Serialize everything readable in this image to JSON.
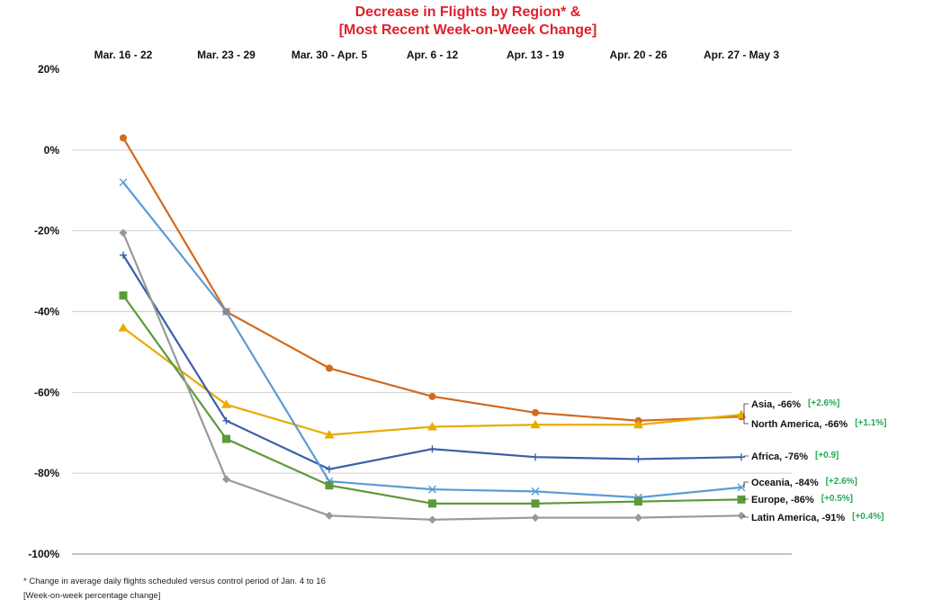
{
  "chart_data": {
    "type": "line",
    "title_line1": "Decrease in Flights by Region* &",
    "title_line2": "[Most Recent Week-on-Week Change]",
    "categories": [
      "Mar. 16 - 22",
      "Mar. 23 - 29",
      "Mar. 30 - Apr. 5",
      "Apr. 6 - 12",
      "Apr. 13 - 19",
      "Apr. 20 - 26",
      "Apr. 27 - May 3"
    ],
    "y_ticks": [
      20,
      0,
      -20,
      -40,
      -60,
      -80,
      -100
    ],
    "y_tick_labels": [
      "20%",
      "0%",
      "-20%",
      "-40%",
      "-60%",
      "-80%",
      "-100%"
    ],
    "ylim": [
      -100,
      20
    ],
    "x_axis_position": "top",
    "grid": true,
    "legend": "inline labels at right end of each line",
    "series": [
      {
        "name": "Asia",
        "end_label": "Asia, -66%",
        "change": "[+2.6%]",
        "color": "#d2691e",
        "marker": "circle",
        "values": [
          3,
          -40,
          -54,
          -61,
          -65,
          -67,
          -66
        ]
      },
      {
        "name": "North America",
        "end_label": "North America, -66%",
        "change": "[+1.1%]",
        "color": "#e6ac00",
        "marker": "triangle",
        "values": [
          -44,
          -63,
          -70.5,
          -68.5,
          -68,
          -68,
          -65.5
        ]
      },
      {
        "name": "Africa",
        "end_label": "Africa, -76%",
        "change": "[+0.9]",
        "color": "#3a5fa8",
        "marker": "plus",
        "values": [
          -26,
          -67,
          -79,
          -74,
          -76,
          -76.5,
          -76
        ]
      },
      {
        "name": "Oceania",
        "end_label": "Oceania, -84%",
        "change": "[+2.6%]",
        "color": "#5b9bd5",
        "marker": "x",
        "values": [
          -8,
          -40,
          -82,
          -84,
          -84.5,
          -86,
          -83.5
        ]
      },
      {
        "name": "Europe",
        "end_label": "Europe, -86%",
        "change": "[+0.5%]",
        "color": "#5b9a3a",
        "marker": "square",
        "values": [
          -36,
          -71.5,
          -83,
          -87.5,
          -87.5,
          -87,
          -86.5
        ]
      },
      {
        "name": "Latin America",
        "end_label": "Latin America, -91%",
        "change": "[+0.4%]",
        "color": "#999999",
        "marker": "diamond",
        "values": [
          -20.5,
          -81.5,
          -90.5,
          -91.5,
          -91,
          -91,
          -90.5
        ]
      }
    ],
    "change_color": "#22aa55"
  },
  "footnotes": {
    "line1": "* Change in average daily flights scheduled versus control period of Jan. 4 to 16",
    "line2": "[Week-on-week percentage change]"
  }
}
